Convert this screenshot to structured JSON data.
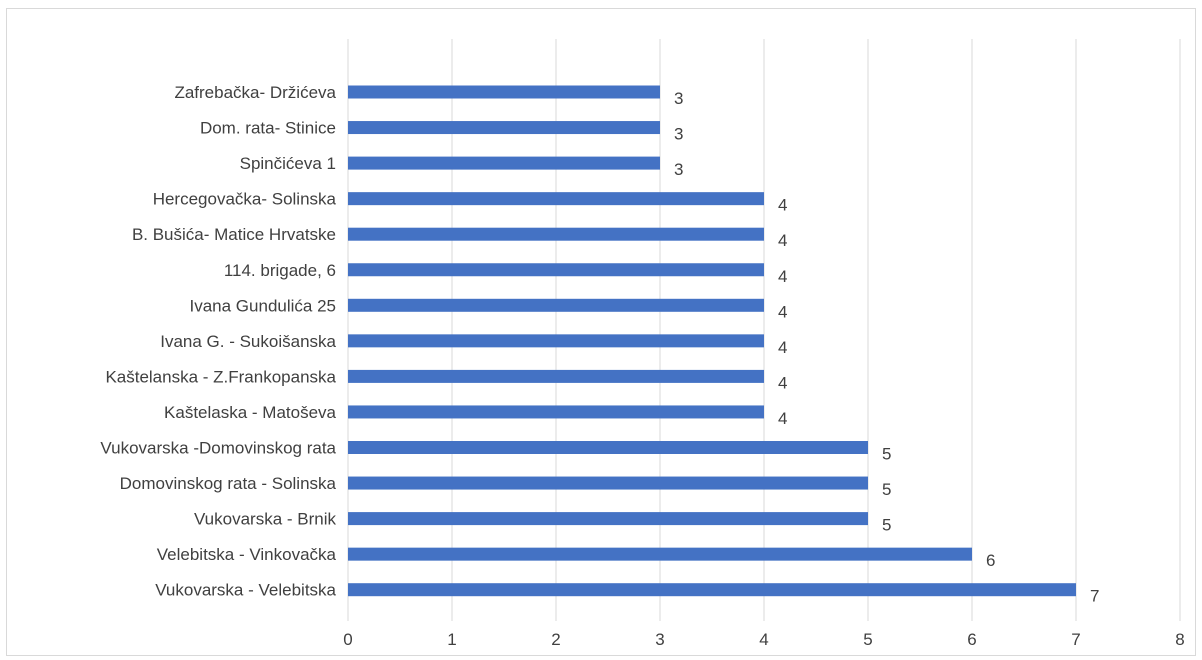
{
  "chart_data": {
    "type": "bar",
    "orientation": "horizontal",
    "title": "",
    "xlabel": "",
    "ylabel": "",
    "xlim": [
      0,
      8
    ],
    "xticks": [
      "0",
      "1",
      "2",
      "3",
      "4",
      "5",
      "6",
      "7",
      "8"
    ],
    "grid": "vertical",
    "legend": "none",
    "bar_color": "#4472c4",
    "categories": [
      "Zafrebačka- Držićeva",
      "Dom. rata- Stinice",
      "Spinčićeva 1",
      "Hercegovačka- Solinska",
      "B. Bušića- Matice Hrvatske",
      "114. brigade, 6",
      "Ivana Gundulića 25",
      "Ivana G. - Sukoišanska",
      "Kaštelanska - Z.Frankopanska",
      "Kaštelaska - Matoševa",
      "Vukovarska -Domovinskog rata",
      "Domovinskog rata - Solinska",
      "Vukovarska - Brnik",
      "Velebitska - Vinkovačka",
      "Vukovarska - Velebitska"
    ],
    "values": [
      3,
      3,
      3,
      4,
      4,
      4,
      4,
      4,
      4,
      4,
      5,
      5,
      5,
      6,
      7
    ],
    "data_labels": [
      "3",
      "3",
      "3",
      "4",
      "4",
      "4",
      "4",
      "4",
      "4",
      "4",
      "5",
      "5",
      "5",
      "6",
      "7"
    ]
  }
}
